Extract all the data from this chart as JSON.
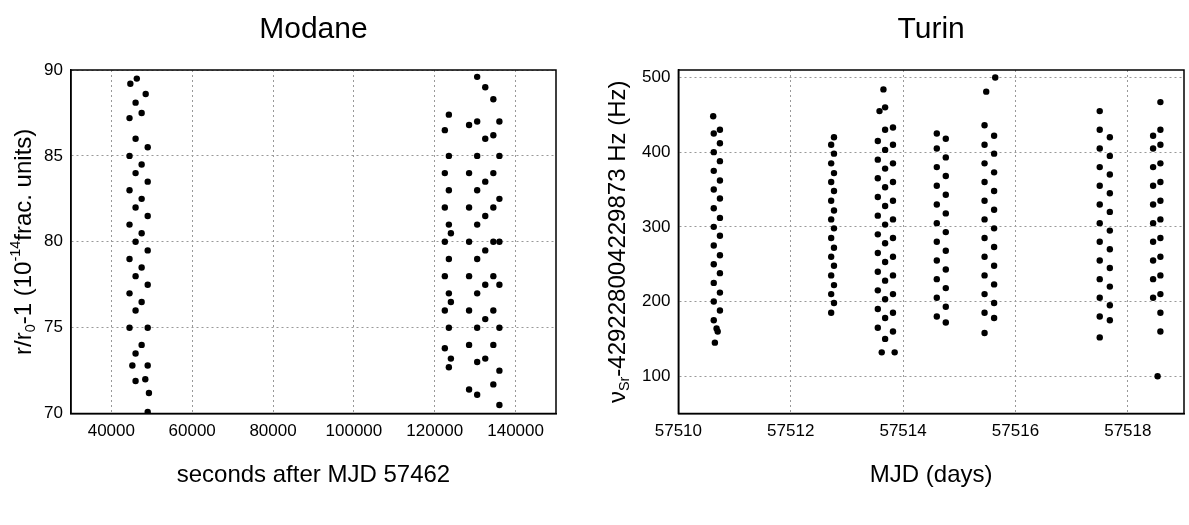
{
  "chart_data": [
    {
      "type": "scatter",
      "title": "Modane",
      "xlabel": "seconds after MJD 57462",
      "ylabel": "r/r$_{0}$-1 (10$^{-14}$frac. units)",
      "xlim": [
        30000,
        150000
      ],
      "xticks": [
        40000,
        60000,
        80000,
        100000,
        120000,
        140000
      ],
      "ylim": [
        70,
        90
      ],
      "yticks": [
        70,
        75,
        80,
        85,
        90
      ],
      "grid": true,
      "marker": "circle",
      "series": [
        {
          "color": "#000000",
          "x": [
            44500,
            44500,
            44500,
            44500,
            44500,
            44500,
            44500,
            46000,
            46000,
            46000,
            46000,
            46000,
            46000,
            46000,
            46000,
            47500,
            47500,
            47500,
            47500,
            47500,
            47500,
            47500,
            49000,
            49000,
            49000,
            49000,
            49000,
            49000,
            49000,
            44700,
            46300,
            48500,
            49000,
            49300,
            46000,
            48400,
            45200,
            122500,
            122500,
            122500,
            122500,
            122500,
            122500,
            122500,
            123500,
            123500,
            123500,
            123500,
            123500,
            123500,
            123500,
            123500,
            124000,
            124000,
            124000,
            128500,
            128500,
            128500,
            128500,
            128500,
            128500,
            128500,
            128500,
            130500,
            130500,
            130500,
            130500,
            130500,
            130500,
            130500,
            130500,
            130500,
            130500,
            132500,
            132500,
            132500,
            132500,
            132500,
            132500,
            132500,
            132500,
            134500,
            134500,
            134500,
            134500,
            134500,
            134500,
            134500,
            134500,
            134500,
            136000,
            136000,
            136000,
            136000,
            136000,
            136000,
            136000,
            136000
          ],
          "values": [
            75,
            77,
            79,
            81,
            83,
            85,
            87.2,
            73.5,
            76,
            78,
            80,
            82,
            84,
            86,
            88.1,
            74,
            76.5,
            78.5,
            80.5,
            82.5,
            84.5,
            87.5,
            72.8,
            75,
            77.5,
            79.5,
            81.5,
            83.5,
            85.5,
            89.2,
            89.5,
            88.6,
            70.1,
            71.2,
            71.9,
            72,
            72.8,
            73.8,
            76,
            78,
            80,
            82,
            84,
            86.5,
            72.7,
            75,
            77,
            79,
            81,
            83,
            85,
            87.4,
            73.2,
            76.5,
            80.5,
            71.4,
            74,
            76,
            78,
            80,
            82,
            84,
            86.8,
            71.1,
            73,
            75,
            77,
            79,
            81,
            83,
            85,
            87,
            89.6,
            73.2,
            75.5,
            77.5,
            79.5,
            81.5,
            83.5,
            86,
            89,
            71.7,
            74,
            76,
            78,
            80,
            82,
            84,
            86.2,
            88.3,
            70.5,
            72.5,
            75,
            77.5,
            80,
            82.5,
            85,
            87
          ]
        }
      ]
    },
    {
      "type": "scatter",
      "title": "Turin",
      "xlabel": "MJD (days)",
      "ylabel": "ν$_{Sr}$-429228004229873 Hz (Hz)",
      "xlim": [
        57510,
        57519
      ],
      "xticks": [
        57510,
        57512,
        57514,
        57516,
        57518
      ],
      "ylim": [
        50,
        510
      ],
      "yticks": [
        100,
        200,
        300,
        400,
        500
      ],
      "grid": true,
      "marker": "circle",
      "series": [
        {
          "color": "#000000",
          "x": [
            57510.63,
            57510.63,
            57510.63,
            57510.63,
            57510.63,
            57510.63,
            57510.63,
            57510.63,
            57510.63,
            57510.63,
            57510.63,
            57510.74,
            57510.74,
            57510.74,
            57510.74,
            57510.74,
            57510.74,
            57510.74,
            57510.74,
            57510.74,
            57510.74,
            57510.74,
            57510.65,
            57510.7,
            57510.62,
            57510.68,
            57512.72,
            57512.72,
            57512.72,
            57512.72,
            57512.72,
            57512.72,
            57512.72,
            57512.72,
            57512.72,
            57512.72,
            57512.77,
            57512.77,
            57512.77,
            57512.77,
            57512.77,
            57512.77,
            57512.77,
            57512.77,
            57512.77,
            57512.77,
            57513.55,
            57513.55,
            57513.55,
            57513.55,
            57513.55,
            57513.55,
            57513.55,
            57513.55,
            57513.55,
            57513.55,
            57513.55,
            57513.68,
            57513.68,
            57513.68,
            57513.68,
            57513.68,
            57513.68,
            57513.68,
            57513.68,
            57513.68,
            57513.68,
            57513.68,
            57513.68,
            57513.68,
            57513.82,
            57513.82,
            57513.82,
            57513.82,
            57513.82,
            57513.82,
            57513.82,
            57513.82,
            57513.82,
            57513.82,
            57513.82,
            57513.82,
            57513.62,
            57513.85,
            57513.65,
            57513.58,
            57514.6,
            57514.6,
            57514.6,
            57514.6,
            57514.6,
            57514.6,
            57514.6,
            57514.6,
            57514.6,
            57514.6,
            57514.6,
            57514.76,
            57514.76,
            57514.76,
            57514.76,
            57514.76,
            57514.76,
            57514.76,
            57514.76,
            57514.76,
            57514.76,
            57514.76,
            57515.45,
            57515.45,
            57515.45,
            57515.45,
            57515.45,
            57515.45,
            57515.45,
            57515.45,
            57515.45,
            57515.45,
            57515.45,
            57515.45,
            57515.62,
            57515.62,
            57515.62,
            57515.62,
            57515.62,
            57515.62,
            57515.62,
            57515.62,
            57515.62,
            57515.62,
            57515.62,
            57515.48,
            57515.64,
            57517.5,
            57517.5,
            57517.5,
            57517.5,
            57517.5,
            57517.5,
            57517.5,
            57517.5,
            57517.5,
            57517.5,
            57517.5,
            57517.5,
            57517.5,
            57517.68,
            57517.68,
            57517.68,
            57517.68,
            57517.68,
            57517.68,
            57517.68,
            57517.68,
            57517.68,
            57517.68,
            57517.68,
            57518.45,
            57518.45,
            57518.45,
            57518.45,
            57518.45,
            57518.45,
            57518.45,
            57518.45,
            57518.45,
            57518.45,
            57518.58,
            57518.58,
            57518.58,
            57518.58,
            57518.58,
            57518.58,
            57518.58,
            57518.58,
            57518.58,
            57518.58,
            57518.58,
            57518.58,
            57518.58,
            57518.53
          ],
          "values": [
            175,
            200,
            225,
            250,
            275,
            300,
            325,
            350,
            375,
            400,
            425,
            188,
            212,
            238,
            262,
            288,
            312,
            338,
            362,
            388,
            412,
            430,
            145,
            160,
            448,
            164,
            185,
            210,
            235,
            260,
            285,
            310,
            335,
            360,
            385,
            410,
            198,
            222,
            248,
            272,
            298,
            322,
            348,
            372,
            398,
            420,
            165,
            190,
            215,
            240,
            265,
            290,
            315,
            340,
            365,
            390,
            415,
            150,
            178,
            203,
            228,
            253,
            278,
            303,
            328,
            353,
            378,
            403,
            430,
            460,
            160,
            185,
            210,
            235,
            260,
            285,
            310,
            335,
            360,
            385,
            410,
            433,
            132,
            132,
            484,
            455,
            180,
            205,
            230,
            255,
            280,
            305,
            330,
            355,
            380,
            405,
            425,
            172,
            193,
            218,
            243,
            268,
            293,
            318,
            343,
            368,
            393,
            418,
            158,
            185,
            210,
            235,
            260,
            285,
            310,
            335,
            360,
            385,
            410,
            436,
            178,
            198,
            223,
            248,
            273,
            298,
            323,
            348,
            373,
            398,
            422,
            481,
            500,
            152,
            180,
            205,
            230,
            255,
            280,
            305,
            330,
            355,
            380,
            405,
            430,
            455,
            175,
            195,
            220,
            245,
            270,
            295,
            320,
            345,
            370,
            395,
            420,
            205,
            230,
            255,
            280,
            305,
            330,
            355,
            380,
            405,
            422,
            160,
            185,
            210,
            235,
            260,
            285,
            310,
            335,
            360,
            385,
            410,
            430,
            467,
            100
          ]
        }
      ]
    }
  ]
}
